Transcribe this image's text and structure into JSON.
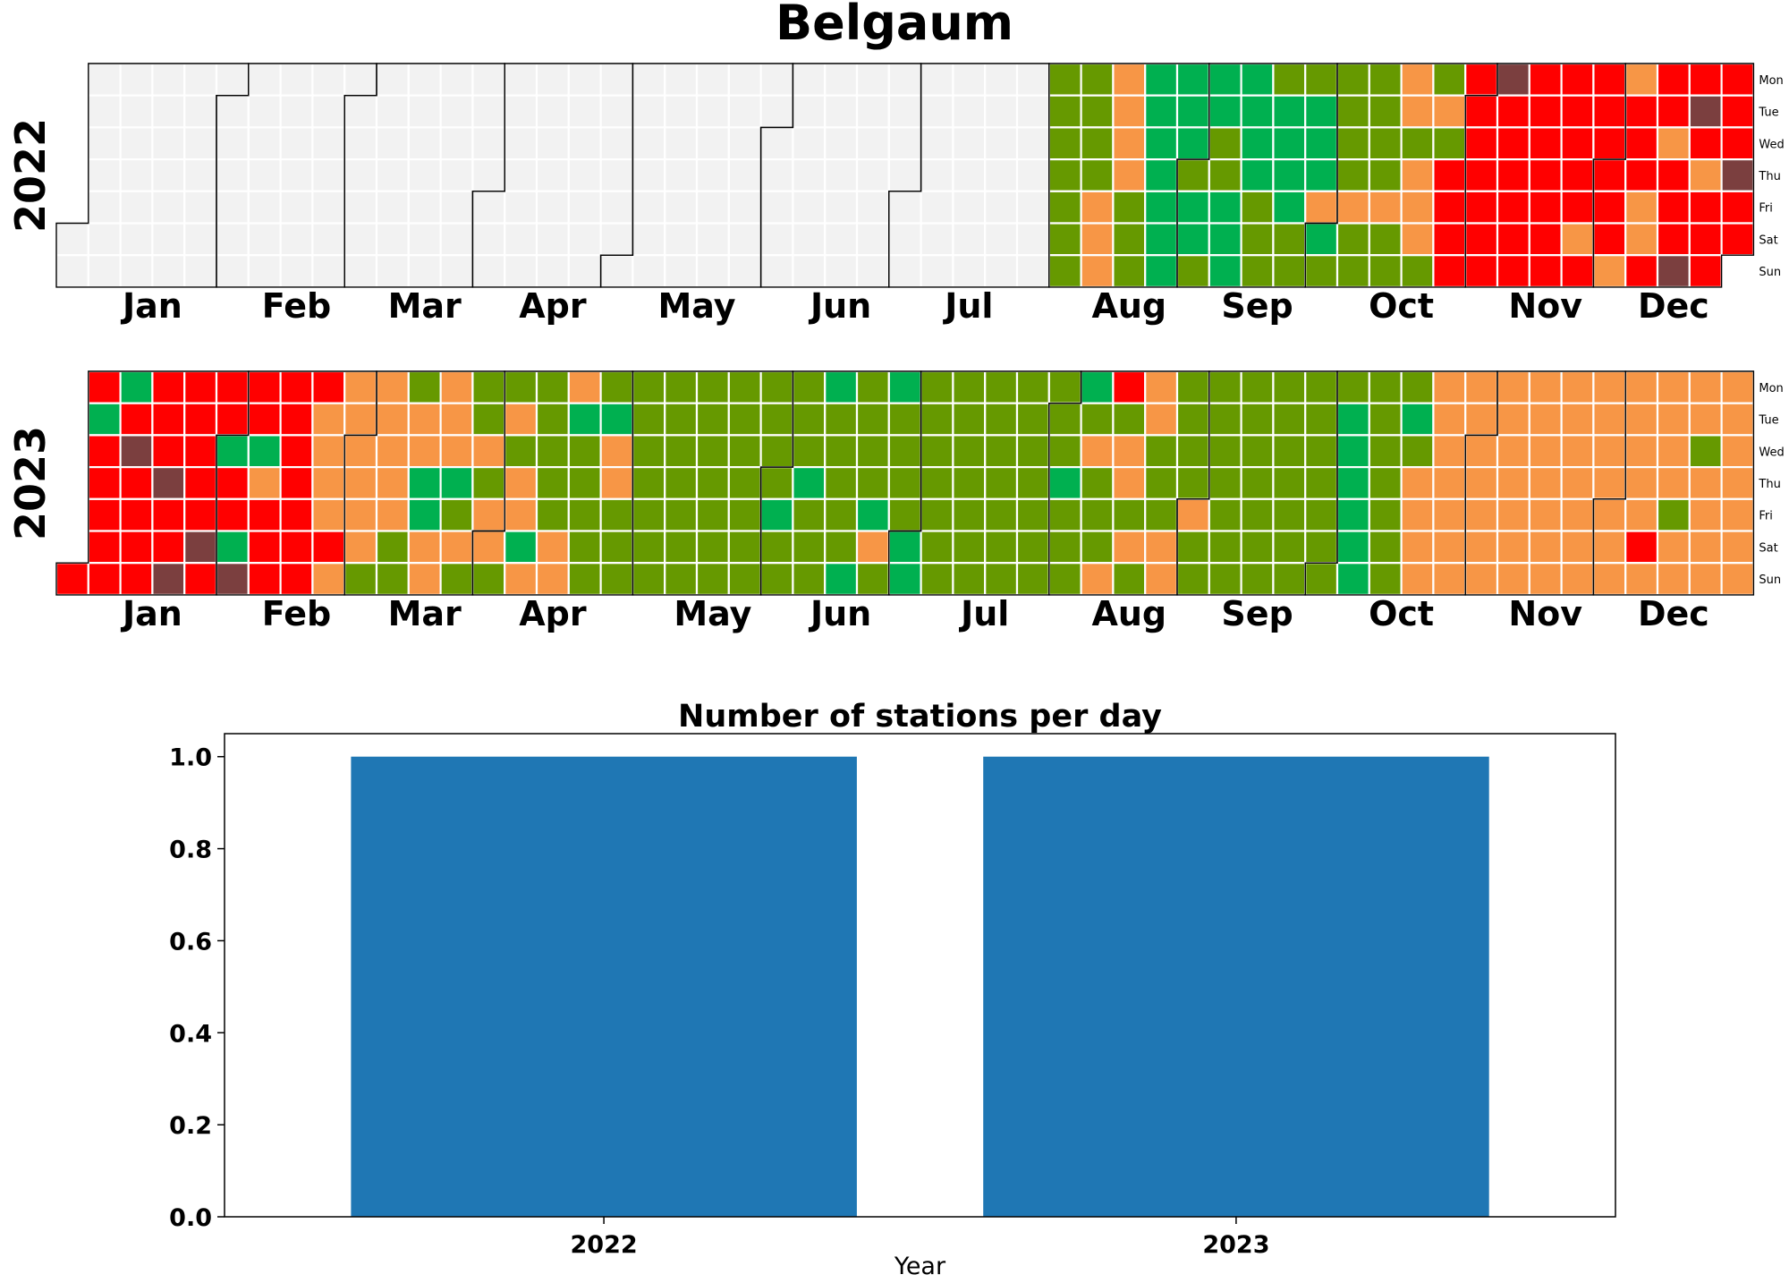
{
  "title": "Belgaum",
  "weekdays": [
    "Mon",
    "Tue",
    "Wed",
    "Thu",
    "Fri",
    "Sat",
    "Sun"
  ],
  "months": [
    "Jan",
    "Feb",
    "Mar",
    "Apr",
    "May",
    "Jun",
    "Jul",
    "Aug",
    "Sep",
    "Oct",
    "Nov",
    "Dec"
  ],
  "colors": {
    "no_data": "#f2f2f2",
    "good": "#00b050",
    "satisfactory": "#669900",
    "moderate": "#f79646",
    "poor": "#ff0000",
    "very_poor": "#7b3f3f",
    "bar": "#1f77b4"
  },
  "chart_data": [
    {
      "type": "heatmap",
      "title": "2022",
      "year": 2022,
      "rows": [
        "Mon",
        "Tue",
        "Wed",
        "Thu",
        "Fri",
        "Sat",
        "Sun"
      ],
      "month_labels": [
        "Jan",
        "Feb",
        "Mar",
        "Apr",
        "May",
        "Jun",
        "Jul",
        "Aug",
        "Sep",
        "Oct",
        "Nov",
        "Dec"
      ],
      "first_data_date": "2022-08-01",
      "legend_codes": {
        "0": "no_data",
        "1": "good",
        "2": "satisfactory",
        "3": "moderate",
        "4": "poor",
        "5": "very_poor"
      },
      "daily_category_codes_from_first_data_date": "2222222222233333332221111111111211211221111111222211112221113122222322222232233233322324444444444454444444444444444443444444433444334443444545434444445444444444444444"
    },
    {
      "type": "heatmap",
      "title": "2023",
      "year": 2023,
      "rows": [
        "Mon",
        "Tue",
        "Wed",
        "Thu",
        "Fri",
        "Sat",
        "Sun"
      ],
      "month_labels": [
        "Jan",
        "Feb",
        "Mar",
        "Apr",
        "May",
        "Jun",
        "Jul",
        "Aug",
        "Sep",
        "Oct",
        "Nov",
        "Dec"
      ],
      "first_data_date": "2023-01-01",
      "legend_codes": {
        "0": "no_data",
        "1": "good",
        "2": "satisfactory",
        "3": "moderate",
        "4": "poor",
        "5": "very_poor"
      },
      "daily_category_codes_from_first_data_date": "4414444414544444445445444445444144154413444444444443333433333332333332223311333331232223233223233132222233312222221332222222222222222222222222222222222212222212221222221222213212222112222222222222222222222222222222122212322234233232332223322223222222222222222222222222222222211111122222222123333333333333333333333333333333333333333333333333334333332333323333333333333333233323333224323333333333333223333333313343333334333333333333333"
    },
    {
      "type": "bar",
      "title": "Number of stations per day",
      "categories": [
        "2022",
        "2023"
      ],
      "values": [
        1,
        1
      ],
      "xlabel": "Year",
      "ylabel": "",
      "ylim": [
        0,
        1.05
      ],
      "yticks": [
        "0.0",
        "0.2",
        "0.4",
        "0.6",
        "0.8",
        "1.0"
      ]
    }
  ]
}
